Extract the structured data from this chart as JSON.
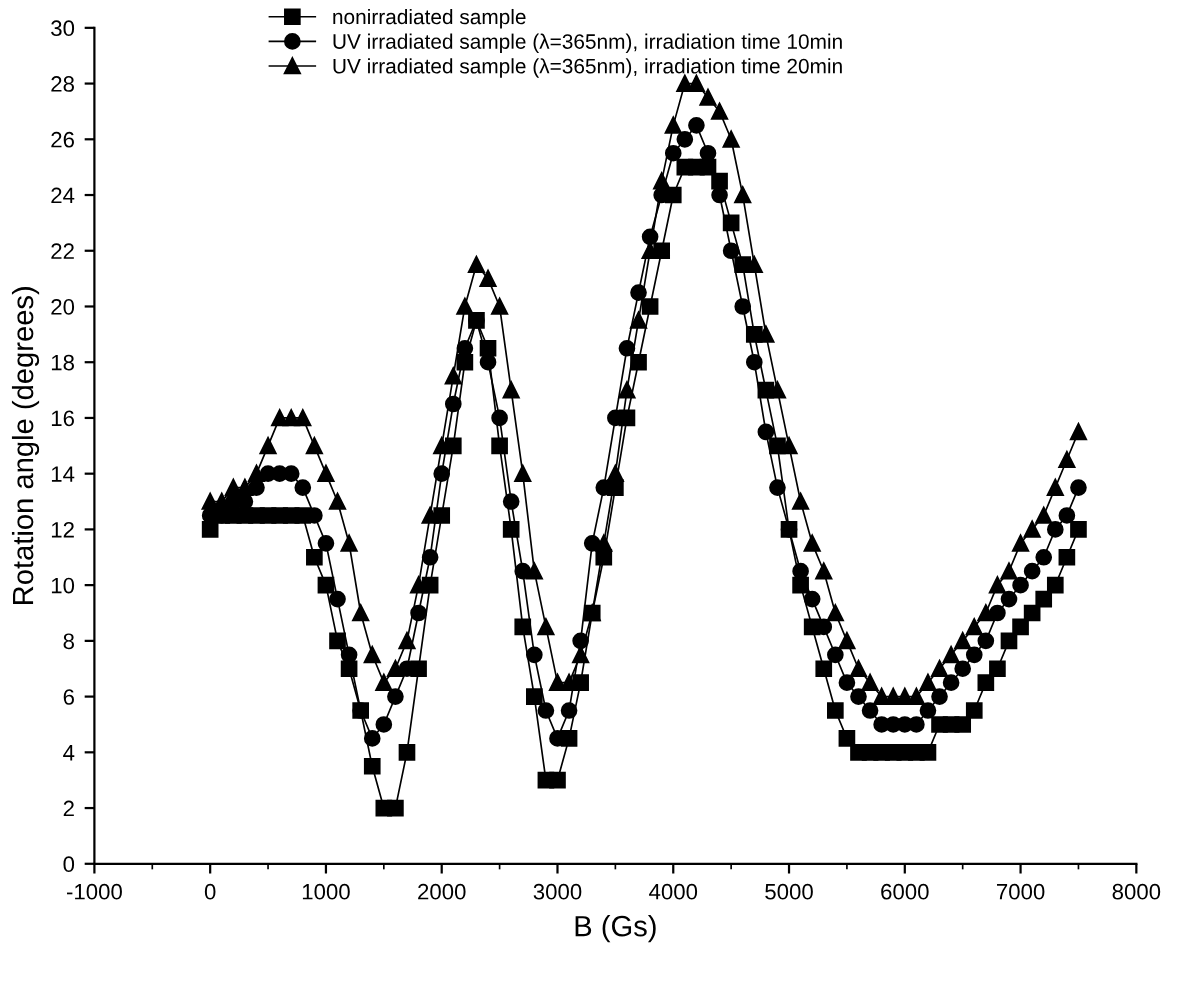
{
  "chart_data": {
    "type": "line",
    "xlabel": "B (Gs)",
    "ylabel": "Rotation angle (degrees)",
    "xlim": [
      -1000,
      8000
    ],
    "xticks": [
      -1000,
      0,
      1000,
      2000,
      3000,
      4000,
      5000,
      6000,
      7000,
      8000
    ],
    "ylim": [
      0,
      30
    ],
    "yticks": [
      0,
      2,
      4,
      6,
      8,
      10,
      12,
      14,
      16,
      18,
      20,
      22,
      24,
      26,
      28,
      30
    ],
    "grid": false,
    "legend": "top",
    "x": [
      0,
      100,
      200,
      300,
      400,
      500,
      600,
      700,
      800,
      900,
      1000,
      1100,
      1200,
      1300,
      1400,
      1500,
      1600,
      1700,
      1800,
      1900,
      2000,
      2100,
      2200,
      2300,
      2400,
      2500,
      2600,
      2700,
      2800,
      2900,
      3000,
      3100,
      3200,
      3300,
      3400,
      3500,
      3600,
      3700,
      3800,
      3900,
      4000,
      4100,
      4200,
      4300,
      4400,
      4500,
      4600,
      4700,
      4800,
      4900,
      5000,
      5100,
      5200,
      5300,
      5400,
      5500,
      5600,
      5700,
      5800,
      5900,
      6000,
      6100,
      6200,
      6300,
      6400,
      6500,
      6600,
      6700,
      6800,
      6900,
      7000,
      7100,
      7200,
      7300,
      7400,
      7500
    ],
    "series": [
      {
        "name": "nonirradiated sample",
        "color": "#000000",
        "marker": "square",
        "values": [
          12,
          12.5,
          12.5,
          12.5,
          12.5,
          12.5,
          12.5,
          12.5,
          12.5,
          11,
          10,
          8,
          7,
          5.5,
          3.5,
          2,
          2,
          4,
          7,
          10,
          12.5,
          15,
          18,
          19.5,
          18.5,
          15,
          12,
          8.5,
          6,
          3,
          3,
          4.5,
          6.5,
          9,
          11,
          13.5,
          16,
          18,
          20,
          22,
          24,
          25,
          25,
          25,
          24.5,
          23,
          21.5,
          19,
          17,
          15,
          12,
          10,
          8.5,
          7,
          5.5,
          4.5,
          4,
          4,
          4,
          4,
          4,
          4,
          4,
          5,
          5,
          5,
          5.5,
          6.5,
          7,
          8,
          8.5,
          9,
          9.5,
          10,
          11,
          12
        ]
      },
      {
        "name": "UV irradiated sample (λ=365nm), irradiation time 10min",
        "color": "#000000",
        "marker": "circle",
        "values": [
          12.5,
          12.5,
          13,
          13,
          13.5,
          14,
          14,
          14,
          13.5,
          12.5,
          11.5,
          9.5,
          7.5,
          5.5,
          4.5,
          5,
          6,
          7,
          9,
          11,
          14,
          16.5,
          18.5,
          19.5,
          18,
          16,
          13,
          10.5,
          7.5,
          5.5,
          4.5,
          5.5,
          8,
          11.5,
          13.5,
          16,
          18.5,
          20.5,
          22.5,
          24,
          25.5,
          26,
          26.5,
          25.5,
          24,
          22,
          20,
          18,
          15.5,
          13.5,
          12,
          10.5,
          9.5,
          8.5,
          7.5,
          6.5,
          6,
          5.5,
          5,
          5,
          5,
          5,
          5.5,
          6,
          6.5,
          7,
          7.5,
          8,
          9,
          9.5,
          10,
          10.5,
          11,
          12,
          12.5,
          13.5
        ]
      },
      {
        "name": "UV irradiated sample (λ=365nm), irradiation time 20min",
        "color": "#000000",
        "marker": "triangle",
        "values": [
          13,
          13,
          13.5,
          13.5,
          14,
          15,
          16,
          16,
          16,
          15,
          14,
          13,
          11.5,
          9,
          7.5,
          6.5,
          7,
          8,
          10,
          12.5,
          15,
          17.5,
          20,
          21.5,
          21,
          20,
          17,
          14,
          10.5,
          8.5,
          6.5,
          6.5,
          7.5,
          9,
          11.5,
          14,
          17,
          19.5,
          22,
          24.5,
          26.5,
          28,
          28,
          27.5,
          27,
          26,
          24,
          21.5,
          19,
          17,
          15,
          13,
          11.5,
          10.5,
          9,
          8,
          7,
          6.5,
          6,
          6,
          6,
          6,
          6.5,
          7,
          7.5,
          8,
          8.5,
          9,
          10,
          10.5,
          11.5,
          12,
          12.5,
          13.5,
          14.5,
          15.5
        ]
      }
    ]
  }
}
